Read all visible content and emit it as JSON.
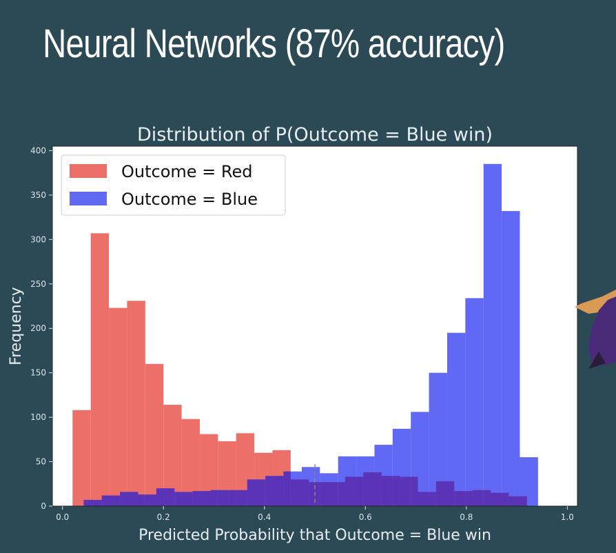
{
  "slide": {
    "title": "Neural Networks (87% accuracy)"
  },
  "colors": {
    "background": "#2c4a56",
    "red": "#ec6f68",
    "blue": "#6168f4",
    "overlap": "#5a33b7",
    "plot_bg": "#ffffff"
  },
  "chart_data": {
    "type": "bar",
    "title": "Distribution of P(Outcome = Blue win)",
    "xlabel": "Predicted Probability that Outcome = Blue win",
    "ylabel": "Frequency",
    "xlim": [
      -0.02,
      1.02
    ],
    "ylim": [
      0,
      405
    ],
    "xticks": [
      "0.0",
      "0.2",
      "0.4",
      "0.6",
      "0.8",
      "1.0"
    ],
    "yticks": [
      "0",
      "50",
      "100",
      "150",
      "200",
      "250",
      "300",
      "350",
      "400"
    ],
    "grid": false,
    "legend_position": "top-left",
    "annotations": [
      {
        "type": "vertical-dashed-line",
        "x": 0.5
      }
    ],
    "series": [
      {
        "name": "Outcome = Red",
        "color": "#ec6f68",
        "bins": [
          [
            0.02,
            0.056,
            108
          ],
          [
            0.056,
            0.092,
            307
          ],
          [
            0.092,
            0.128,
            223
          ],
          [
            0.128,
            0.164,
            231
          ],
          [
            0.164,
            0.2,
            160
          ],
          [
            0.2,
            0.236,
            114
          ],
          [
            0.236,
            0.272,
            98
          ],
          [
            0.272,
            0.308,
            81
          ],
          [
            0.308,
            0.344,
            73
          ],
          [
            0.344,
            0.38,
            82
          ],
          [
            0.38,
            0.416,
            60
          ],
          [
            0.416,
            0.452,
            63
          ],
          [
            0.452,
            0.488,
            30
          ],
          [
            0.488,
            0.524,
            27
          ],
          [
            0.524,
            0.56,
            27
          ],
          [
            0.56,
            0.596,
            33
          ],
          [
            0.596,
            0.632,
            38
          ],
          [
            0.632,
            0.668,
            34
          ],
          [
            0.668,
            0.704,
            33
          ],
          [
            0.704,
            0.74,
            16
          ],
          [
            0.74,
            0.776,
            28
          ],
          [
            0.776,
            0.812,
            17
          ],
          [
            0.812,
            0.848,
            18
          ],
          [
            0.848,
            0.884,
            15
          ],
          [
            0.884,
            0.92,
            11
          ]
        ]
      },
      {
        "name": "Outcome = Blue",
        "color": "#6168f4",
        "bins": [
          [
            0.042,
            0.078,
            7
          ],
          [
            0.078,
            0.114,
            12
          ],
          [
            0.114,
            0.15,
            16
          ],
          [
            0.15,
            0.186,
            13
          ],
          [
            0.186,
            0.222,
            20
          ],
          [
            0.222,
            0.258,
            16
          ],
          [
            0.258,
            0.294,
            17
          ],
          [
            0.294,
            0.33,
            18
          ],
          [
            0.33,
            0.366,
            18
          ],
          [
            0.366,
            0.402,
            30
          ],
          [
            0.402,
            0.438,
            34
          ],
          [
            0.438,
            0.474,
            39
          ],
          [
            0.474,
            0.51,
            44
          ],
          [
            0.51,
            0.546,
            37
          ],
          [
            0.546,
            0.582,
            56
          ],
          [
            0.582,
            0.618,
            56
          ],
          [
            0.618,
            0.654,
            69
          ],
          [
            0.654,
            0.69,
            87
          ],
          [
            0.69,
            0.726,
            106
          ],
          [
            0.726,
            0.762,
            150
          ],
          [
            0.762,
            0.798,
            195
          ],
          [
            0.798,
            0.834,
            234
          ],
          [
            0.834,
            0.87,
            385
          ],
          [
            0.87,
            0.906,
            332
          ],
          [
            0.906,
            0.942,
            55
          ]
        ]
      }
    ]
  }
}
